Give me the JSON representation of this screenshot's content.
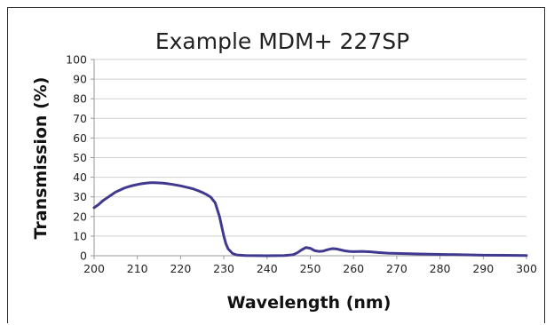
{
  "chart_data": {
    "type": "line",
    "title": "Example MDM+ 227SP",
    "xlabel": "Wavelength (nm)",
    "ylabel": "Transmission (%)",
    "xlim": [
      200,
      300
    ],
    "ylim": [
      0,
      100
    ],
    "x_ticks": [
      "200",
      "210",
      "220",
      "230",
      "240",
      "250",
      "260",
      "270",
      "280",
      "290",
      "300"
    ],
    "y_ticks": [
      "0",
      "10",
      "20",
      "30",
      "40",
      "50",
      "60",
      "70",
      "80",
      "90",
      "100"
    ],
    "grid": "horizontal",
    "series": [
      {
        "color": "#3f3a8f",
        "points": [
          [
            200,
            24.5
          ],
          [
            201,
            26
          ],
          [
            202,
            28
          ],
          [
            203,
            29.5
          ],
          [
            204,
            31
          ],
          [
            205,
            32.5
          ],
          [
            206,
            33.5
          ],
          [
            207,
            34.5
          ],
          [
            208,
            35.2
          ],
          [
            209,
            35.8
          ],
          [
            210,
            36.3
          ],
          [
            211,
            36.7
          ],
          [
            212,
            37
          ],
          [
            213,
            37.2
          ],
          [
            214,
            37.2
          ],
          [
            215,
            37.1
          ],
          [
            216,
            37
          ],
          [
            217,
            36.7
          ],
          [
            218,
            36.4
          ],
          [
            219,
            36
          ],
          [
            220,
            35.6
          ],
          [
            221,
            35.1
          ],
          [
            222,
            34.6
          ],
          [
            223,
            34
          ],
          [
            224,
            33.2
          ],
          [
            225,
            32.3
          ],
          [
            226,
            31.2
          ],
          [
            227,
            29.8
          ],
          [
            228,
            27
          ],
          [
            229,
            20
          ],
          [
            230,
            10
          ],
          [
            230.5,
            6
          ],
          [
            231,
            3.5
          ],
          [
            232,
            1.2
          ],
          [
            233,
            0.4
          ],
          [
            235,
            0.1
          ],
          [
            240,
            0
          ],
          [
            244,
            0.1
          ],
          [
            246,
            0.5
          ],
          [
            247,
            1.5
          ],
          [
            248,
            3
          ],
          [
            249,
            4.2
          ],
          [
            250,
            3.8
          ],
          [
            251,
            2.6
          ],
          [
            252,
            2.2
          ],
          [
            253,
            2.4
          ],
          [
            254,
            3.1
          ],
          [
            255,
            3.6
          ],
          [
            256,
            3.5
          ],
          [
            257,
            3
          ],
          [
            258,
            2.5
          ],
          [
            259,
            2.2
          ],
          [
            260,
            2.1
          ],
          [
            262,
            2.2
          ],
          [
            264,
            2
          ],
          [
            266,
            1.6
          ],
          [
            268,
            1.3
          ],
          [
            270,
            1.2
          ],
          [
            275,
            0.9
          ],
          [
            280,
            0.7
          ],
          [
            285,
            0.5
          ],
          [
            290,
            0.3
          ],
          [
            295,
            0.2
          ],
          [
            300,
            0.1
          ]
        ]
      }
    ]
  }
}
